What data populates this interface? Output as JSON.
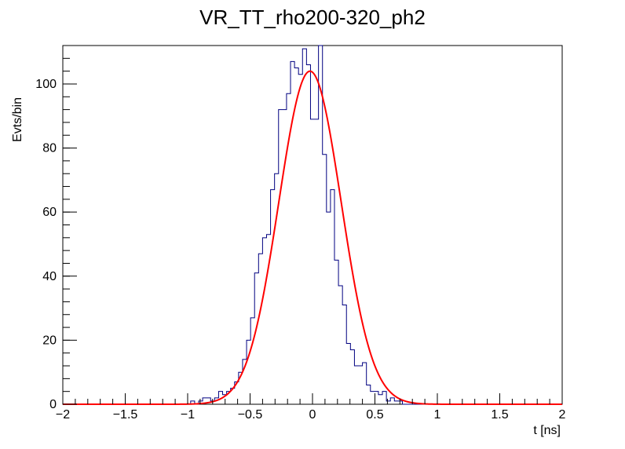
{
  "chart_data": {
    "type": "histogram",
    "title": "VR_TT_rho200-320_ph2",
    "xlabel": "t [ns]",
    "ylabel": "Evts/bin",
    "xlim": [
      -2,
      2
    ],
    "ylim": [
      0,
      112
    ],
    "x_ticks": [
      -2,
      -1.5,
      -1,
      -0.5,
      0,
      0.5,
      1,
      1.5,
      2
    ],
    "x_tick_labels": [
      "−2",
      "−1.5",
      "−1",
      "−0.5",
      "0",
      "0.5",
      "1",
      "1.5",
      "2"
    ],
    "y_ticks": [
      0,
      20,
      40,
      60,
      80,
      100
    ],
    "y_tick_labels": [
      "0",
      "20",
      "40",
      "60",
      "80",
      "100"
    ],
    "grid": false,
    "legend": "none",
    "histogram": {
      "bin_width": 0.032,
      "bin_start": -2.0,
      "values": [
        0,
        0,
        0,
        0,
        0,
        0,
        0,
        0,
        0,
        0,
        0,
        0,
        0,
        0,
        0,
        0,
        0,
        0,
        0,
        0,
        0,
        0,
        0,
        0,
        0,
        0,
        0,
        0,
        0,
        0,
        0,
        0,
        1,
        0,
        1,
        2,
        2,
        1,
        2,
        4,
        3,
        4,
        5,
        7,
        10,
        14,
        20,
        27,
        41,
        47,
        52,
        53,
        67,
        72,
        92,
        92,
        97,
        107,
        105,
        103,
        111,
        106,
        89,
        89,
        112,
        78,
        60,
        67,
        45,
        37,
        31,
        19,
        17,
        12,
        12,
        13,
        6,
        4,
        4,
        3,
        4,
        1,
        2,
        1,
        1,
        0,
        0,
        0,
        0,
        0,
        0,
        0,
        0,
        0,
        0,
        0,
        0,
        0,
        0,
        0,
        0,
        0,
        0,
        0,
        0,
        0,
        0,
        0,
        0,
        0,
        0,
        0,
        0,
        0,
        0,
        0,
        0,
        0,
        0,
        0,
        0,
        0,
        0,
        0,
        0
      ],
      "color": "#000080"
    },
    "fit": {
      "function": "gaussian",
      "amplitude": 104,
      "mean": -0.02,
      "sigma": 0.25,
      "color": "#ff0000"
    }
  }
}
